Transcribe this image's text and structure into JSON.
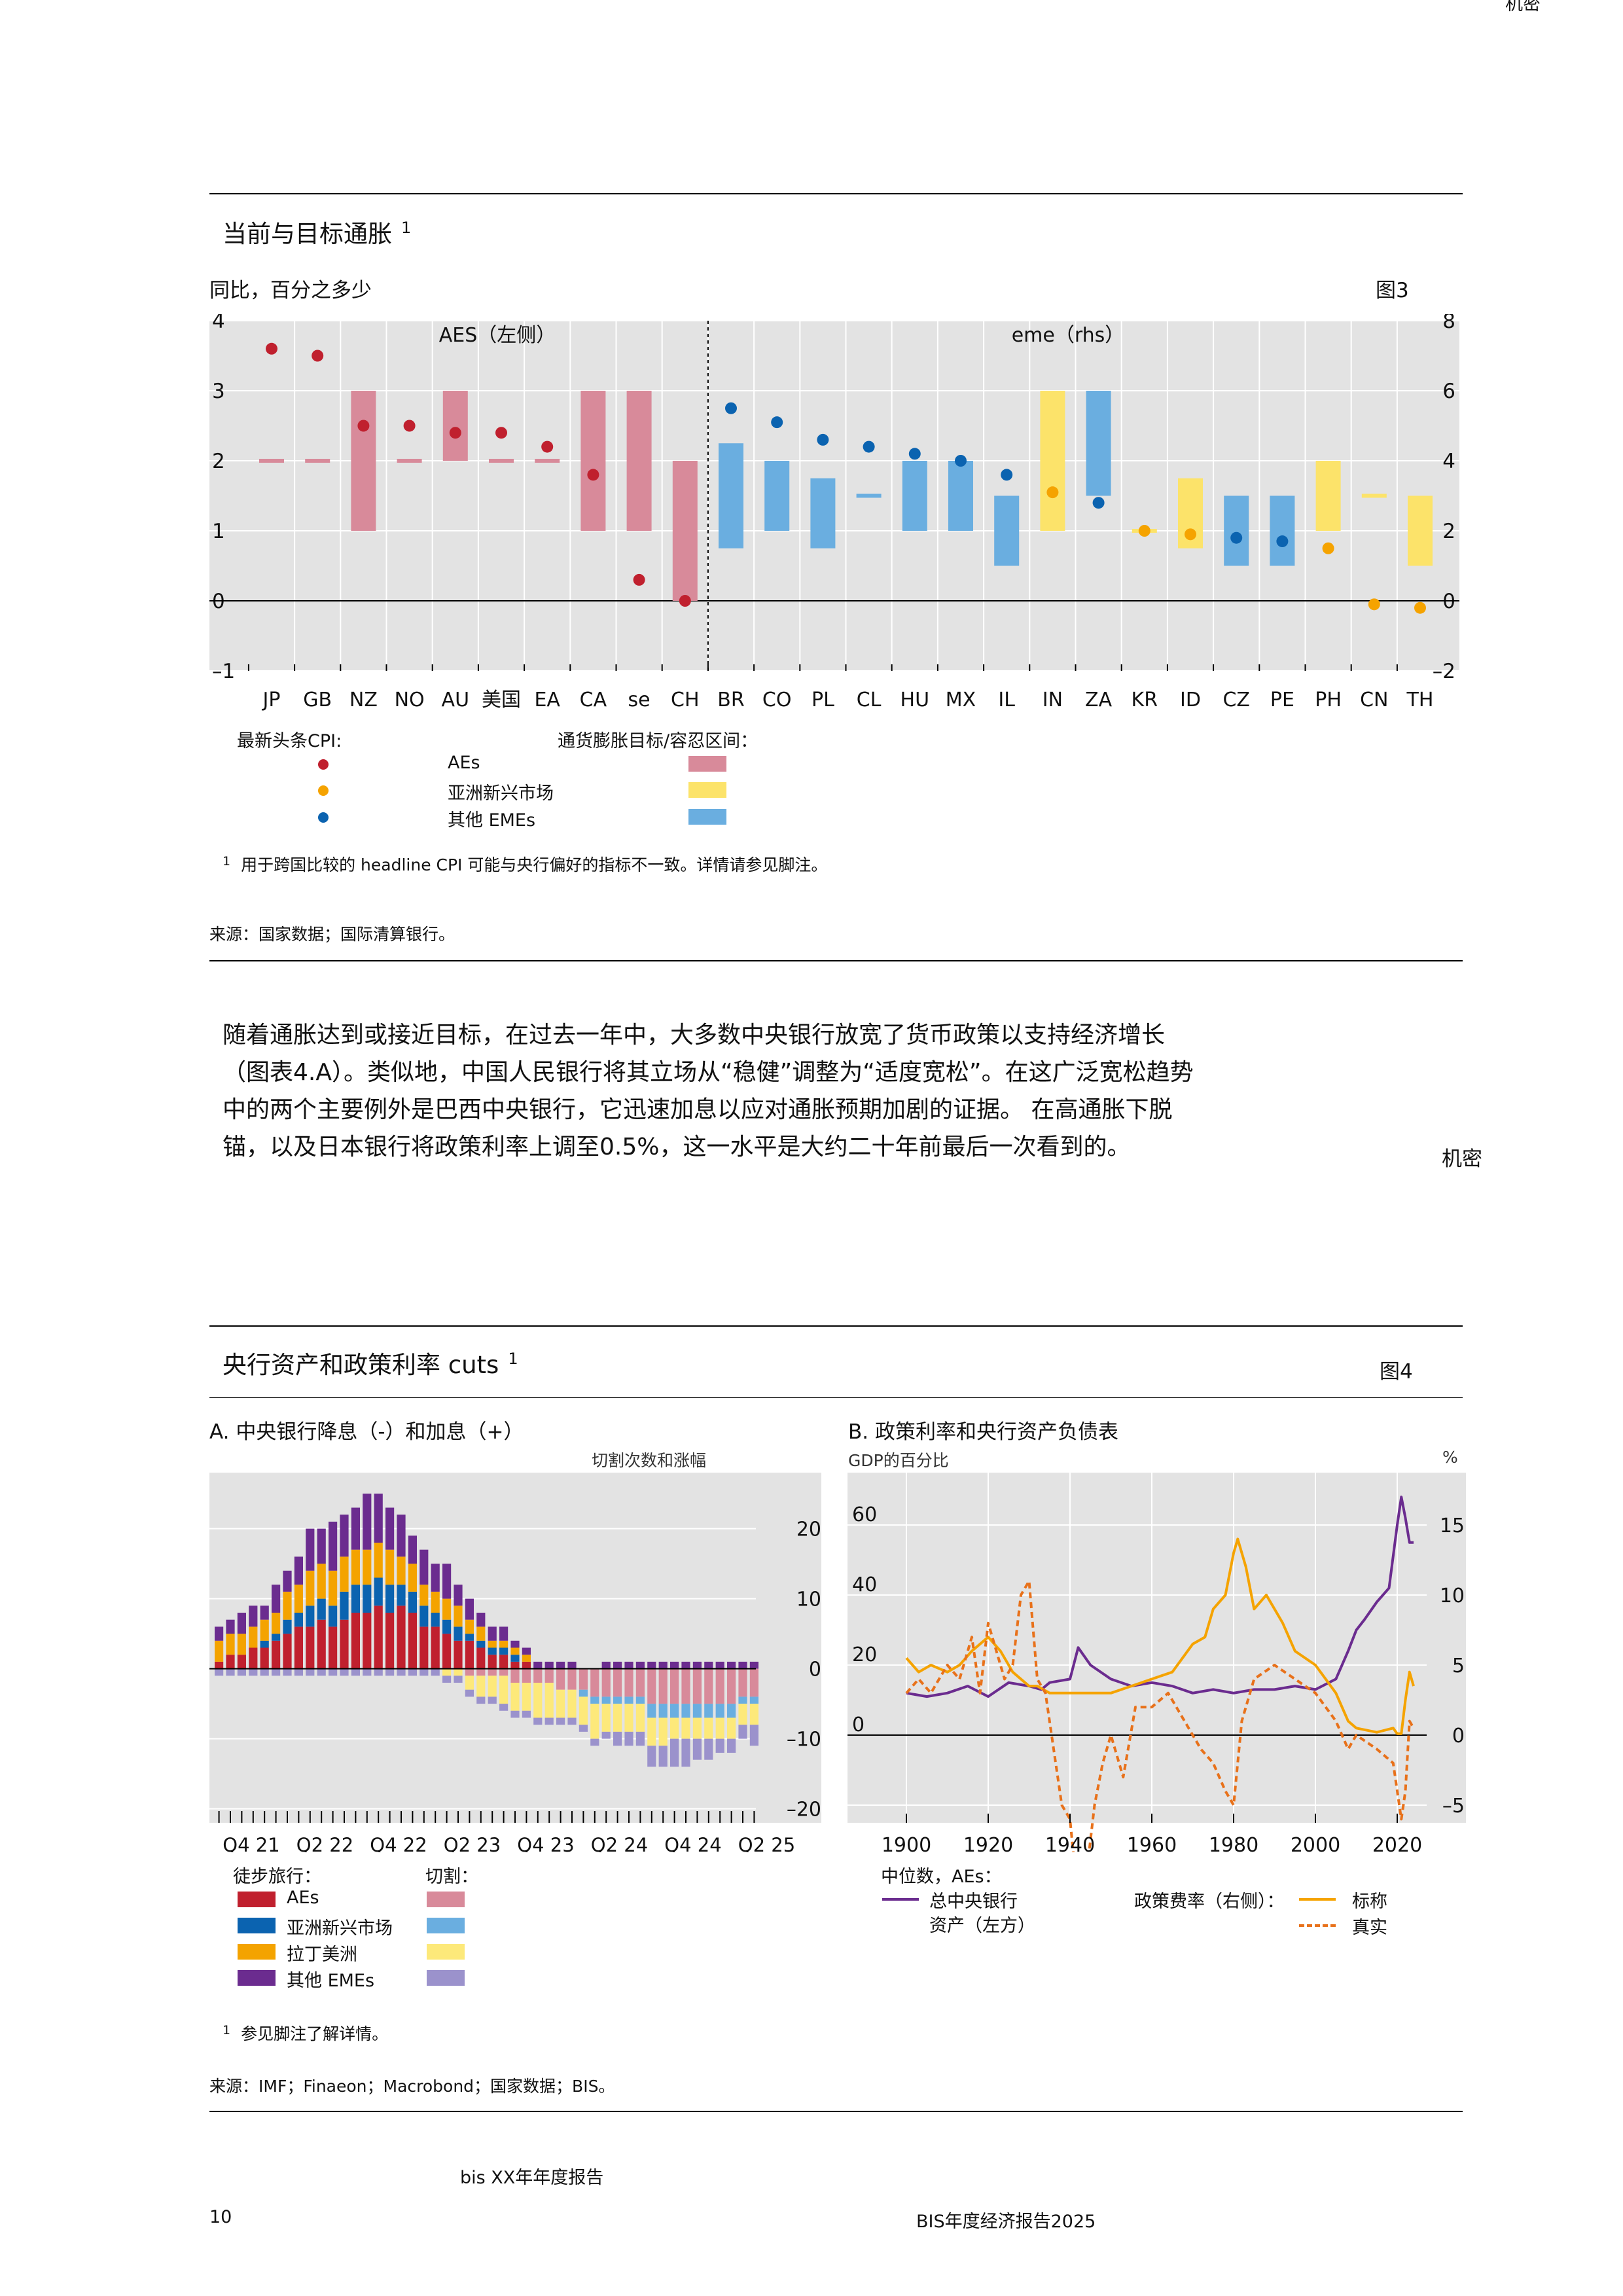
{
  "header": {
    "confidential_top": "机密"
  },
  "figure3": {
    "title": "当前与目标通胀",
    "title_note": "1",
    "subtitle": "同比，百分之多少",
    "label": "图3",
    "left_group": "AES（左侧）",
    "right_group": "eme（rhs）",
    "legend": {
      "cpi_title": "最新头条CPI:",
      "target_title": "通货膨胀目标/容忍区间：",
      "items": [
        "AEs",
        "亚洲新兴市场",
        "其他 EMEs"
      ]
    },
    "footnote_mark": "1",
    "footnote": "用于跨国比较的 headline CPI 可能与央行偏好的指标不一致。详情请参见脚注。",
    "source": "来源：国家数据；国际清算银行。"
  },
  "body": {
    "lines": [
      "随着通胀达到或接近目标，在过去一年中，大多数中央银行放宽了货币政策以支持经济增长",
      "（图表4.A）。类似地，中国人民银行将其立场从“稳健”调整为“适度宽松”。在这广泛宽松趋势",
      "中的两个主要例外是巴西中央银行，它迅速加息以应对通胀预期加剧的证据。 在高通胀下脱",
      "锚，以及日本银行将政策利率上调至0.5%，这一水平是大约二十年前最后一次看到的。"
    ],
    "confidential": "机密"
  },
  "figure4": {
    "title": "央行资产和政策利率 cuts",
    "title_note": "1",
    "label": "图4",
    "panelA": {
      "title": "A. 中央银行降息（-）和加息（+）",
      "unit": "切割次数和涨幅",
      "legend_hikes_title": "徒步旅行：",
      "legend_cuts_title": "切割：",
      "legend_items": [
        "AEs",
        "亚洲新兴市场",
        "拉丁美洲",
        "其他 EMEs"
      ]
    },
    "panelB": {
      "title": "B. 政策利率和央行资产负债表",
      "unit_left": "GDP的百分比",
      "unit_right": "%",
      "legend_median": "中位数，AEs：",
      "legend_assets": "总中央银行资产（左方）",
      "legend_assets_line1": "总中央银行",
      "legend_assets_line2": "资产（左方）",
      "legend_policy": "政策费率（右侧）：",
      "legend_nominal": "标称",
      "legend_real": "真实"
    },
    "footnote_mark": "1",
    "footnote": "参见脚注了解详情。",
    "source": "来源：IMF；Finaeon；Macrobond；国家数据；BIS。"
  },
  "footer": {
    "report": "bis XX年年度报告",
    "page": "10",
    "report_right": "BIS年度经济报告2025"
  },
  "colors": {
    "ae_red": "#c0202e",
    "ae_pink": "#d88a9a",
    "asia_yellow": "#f5a300",
    "asia_light": "#fce36a",
    "eme_blue": "#0b63b0",
    "eme_light": "#6aaee0",
    "latam_orange": "#f4a300",
    "latam_light": "#fde97a",
    "other_purple": "#6b2c8f",
    "other_light": "#9b92cc",
    "panel_bg": "#e3e3e3"
  },
  "chart_data": [
    {
      "type": "bar",
      "name": "figure3",
      "categories": [
        "JP",
        "GB",
        "NZ",
        "NO",
        "AU",
        "美国",
        "EA",
        "CA",
        "se",
        "CH",
        "BR",
        "CO",
        "PL",
        "CL",
        "HU",
        "MX",
        "IL",
        "IN",
        "ZA",
        "KR",
        "ID",
        "CZ",
        "PE",
        "PH",
        "CN",
        "TH"
      ],
      "group": [
        "AE",
        "AE",
        "AE",
        "AE",
        "AE",
        "AE",
        "AE",
        "AE",
        "AE",
        "AE",
        "EME",
        "EME",
        "EME",
        "EME",
        "EME",
        "EME",
        "EME",
        "ASIA",
        "EME",
        "ASIA",
        "ASIA",
        "EME",
        "EME",
        "ASIA",
        "ASIA",
        "ASIA"
      ],
      "axis": [
        "left",
        "left",
        "left",
        "left",
        "left",
        "left",
        "left",
        "left",
        "left",
        "left",
        "right",
        "right",
        "right",
        "right",
        "right",
        "right",
        "right",
        "right",
        "right",
        "right",
        "right",
        "right",
        "right",
        "right",
        "right",
        "right"
      ],
      "target_low": [
        2,
        2,
        1,
        2,
        2,
        2,
        2,
        1,
        1,
        0,
        1.5,
        2,
        1.5,
        3,
        2,
        2,
        1,
        2,
        3,
        2,
        1.5,
        1,
        1,
        2,
        3,
        1
      ],
      "target_high": [
        2,
        2,
        3,
        2,
        3,
        2,
        2,
        3,
        3,
        2,
        4.5,
        4,
        3.5,
        3,
        4,
        4,
        3,
        6,
        6,
        2,
        3.5,
        3,
        3,
        4,
        3,
        3
      ],
      "cpi": [
        3.6,
        3.5,
        2.5,
        2.5,
        2.4,
        2.4,
        2.2,
        1.8,
        0.3,
        0.0,
        5.5,
        5.1,
        4.6,
        4.4,
        4.2,
        4.0,
        3.6,
        3.1,
        2.8,
        2.0,
        1.9,
        1.8,
        1.7,
        1.5,
        -0.1,
        -0.2
      ],
      "ylim_left": [
        -1,
        4
      ],
      "ylim_right": [
        -2,
        8
      ],
      "yticks_left": [
        "–1",
        "0",
        "1",
        "2",
        "3",
        "4"
      ],
      "yticks_right": [
        "–2",
        "0",
        "2",
        "4",
        "6",
        "8"
      ]
    },
    {
      "type": "bar",
      "name": "figure4.panelA",
      "stacked": true,
      "x": [
        "Q4 21",
        "Q2 22",
        "Q4 22",
        "Q2 23",
        "Q4 23",
        "Q2 24",
        "Q4 24",
        "Q2 25"
      ],
      "yticks": [
        "–20",
        "–10",
        "0",
        "10",
        "20"
      ],
      "ylim": [
        -22,
        28
      ],
      "hikes": {
        "AEs": [
          1,
          2,
          2,
          3,
          3,
          4,
          5,
          6,
          6,
          7,
          6,
          7,
          8,
          8,
          9,
          8,
          9,
          8,
          6,
          6,
          5,
          4,
          4,
          3,
          2,
          2,
          1,
          1,
          0,
          0,
          0,
          0,
          0,
          0,
          0,
          0,
          0,
          0,
          0,
          0,
          0,
          0,
          0,
          0,
          0,
          0,
          0,
          0
        ],
        "AsiaEMEs": [
          0,
          0,
          0,
          0,
          1,
          1,
          2,
          2,
          3,
          3,
          3,
          4,
          4,
          4,
          4,
          4,
          3,
          3,
          3,
          2,
          2,
          2,
          1,
          1,
          1,
          1,
          1,
          0,
          0,
          0,
          0,
          0,
          0,
          0,
          0,
          0,
          0,
          0,
          0,
          0,
          0,
          0,
          0,
          0,
          0,
          0,
          0,
          0
        ],
        "LatAm": [
          3,
          3,
          3,
          3,
          3,
          3,
          4,
          4,
          5,
          5,
          5,
          5,
          5,
          5,
          5,
          5,
          4,
          4,
          3,
          3,
          3,
          3,
          2,
          2,
          1,
          1,
          1,
          1,
          0,
          0,
          0,
          0,
          0,
          0,
          0,
          0,
          0,
          0,
          0,
          0,
          0,
          0,
          0,
          0,
          0,
          0,
          0,
          0
        ],
        "OtherEMEs": [
          2,
          2,
          3,
          3,
          2,
          4,
          3,
          4,
          6,
          5,
          7,
          6,
          6,
          8,
          7,
          6,
          6,
          4,
          5,
          4,
          5,
          3,
          3,
          2,
          2,
          2,
          1,
          1,
          1,
          1,
          1,
          1,
          0,
          0,
          1,
          1,
          1,
          1,
          1,
          1,
          1,
          1,
          1,
          1,
          1,
          1,
          1,
          1
        ]
      },
      "cuts": {
        "AEs": [
          0,
          0,
          0,
          0,
          0,
          0,
          0,
          0,
          0,
          0,
          0,
          0,
          0,
          0,
          0,
          0,
          0,
          0,
          0,
          0,
          0,
          0,
          -1,
          -1,
          -1,
          -1,
          -2,
          -2,
          -2,
          -2,
          -3,
          -3,
          -3,
          -4,
          -4,
          -4,
          -4,
          -4,
          -5,
          -5,
          -5,
          -5,
          -5,
          -5,
          -5,
          -5,
          -4,
          -4
        ],
        "AsiaEMEs": [
          0,
          0,
          0,
          0,
          0,
          0,
          0,
          0,
          0,
          0,
          0,
          0,
          0,
          0,
          0,
          0,
          0,
          0,
          0,
          0,
          0,
          0,
          0,
          0,
          0,
          0,
          0,
          0,
          0,
          0,
          0,
          0,
          -1,
          -1,
          -1,
          -1,
          -1,
          -1,
          -2,
          -2,
          -2,
          -2,
          -2,
          -2,
          -2,
          -2,
          -1,
          -1
        ],
        "LatAm": [
          0,
          0,
          0,
          0,
          0,
          0,
          0,
          0,
          0,
          0,
          0,
          0,
          0,
          0,
          0,
          0,
          0,
          0,
          0,
          0,
          -1,
          -1,
          -2,
          -3,
          -3,
          -4,
          -4,
          -4,
          -5,
          -5,
          -4,
          -4,
          -4,
          -5,
          -4,
          -4,
          -4,
          -4,
          -4,
          -4,
          -3,
          -3,
          -3,
          -3,
          -3,
          -3,
          -3,
          -3
        ],
        "OtherEMEs": [
          -1,
          -1,
          -1,
          -1,
          -1,
          -1,
          -1,
          -1,
          -1,
          -1,
          -1,
          -1,
          -1,
          -1,
          -1,
          -1,
          -1,
          -1,
          -1,
          -1,
          -1,
          -1,
          -1,
          -1,
          -1,
          -1,
          -1,
          -1,
          -1,
          -1,
          -1,
          -1,
          -1,
          -1,
          -1,
          -2,
          -2,
          -2,
          -3,
          -3,
          -4,
          -4,
          -3,
          -3,
          -2,
          -2,
          -2,
          -3
        ]
      }
    },
    {
      "type": "line",
      "name": "figure4.panelB",
      "x_ticks": [
        "1900",
        "1920",
        "1940",
        "1960",
        "1980",
        "2000",
        "2020"
      ],
      "yticks_left": [
        "0",
        "20",
        "40",
        "60"
      ],
      "yticks_right": [
        "–10",
        "–5",
        "0",
        "5",
        "10",
        "15"
      ],
      "ylim_left": [
        -20,
        80
      ],
      "ylim_right": [
        -10,
        15
      ],
      "series": [
        {
          "name": "总中央银行资产（左方）",
          "axis": "left",
          "x": [
            1900,
            1905,
            1910,
            1915,
            1920,
            1925,
            1930,
            1933,
            1935,
            1940,
            1942,
            1945,
            1950,
            1955,
            1960,
            1965,
            1970,
            1975,
            1980,
            1985,
            1990,
            1995,
            2000,
            2005,
            2008,
            2010,
            2012,
            2015,
            2018,
            2020,
            2021,
            2022,
            2023,
            2024
          ],
          "y": [
            12,
            11,
            12,
            14,
            11,
            15,
            14,
            13,
            15,
            16,
            25,
            20,
            16,
            14,
            15,
            14,
            12,
            13,
            12,
            13,
            13,
            14,
            13,
            16,
            24,
            30,
            33,
            38,
            42,
            60,
            68,
            62,
            55,
            55
          ]
        },
        {
          "name": "标称",
          "axis": "right",
          "x": [
            1900,
            1903,
            1906,
            1910,
            1913,
            1916,
            1920,
            1923,
            1926,
            1930,
            1932,
            1935,
            1940,
            1945,
            1950,
            1955,
            1960,
            1965,
            1970,
            1973,
            1975,
            1978,
            1980,
            1981,
            1983,
            1985,
            1988,
            1990,
            1992,
            1995,
            2000,
            2005,
            2008,
            2010,
            2015,
            2019,
            2020,
            2021,
            2022,
            2023,
            2024
          ],
          "y": [
            5.5,
            4.5,
            5,
            4.5,
            5,
            6,
            7,
            6,
            4.5,
            3.5,
            3.5,
            3,
            3,
            3,
            3,
            3.5,
            4,
            4.5,
            6.5,
            7,
            9,
            10,
            13,
            14,
            12,
            9,
            10,
            9,
            8,
            6,
            5,
            3,
            1,
            0.5,
            0.2,
            0.5,
            0.1,
            0.1,
            2.5,
            4.5,
            3.5
          ]
        },
        {
          "name": "真实",
          "axis": "right",
          "x": [
            1900,
            1903,
            1906,
            1910,
            1913,
            1916,
            1918,
            1920,
            1922,
            1924,
            1926,
            1928,
            1930,
            1932,
            1934,
            1936,
            1938,
            1940,
            1942,
            1944,
            1946,
            1948,
            1950,
            1953,
            1956,
            1960,
            1964,
            1968,
            1972,
            1975,
            1978,
            1980,
            1982,
            1985,
            1990,
            1995,
            2000,
            2005,
            2008,
            2010,
            2015,
            2019,
            2021,
            2022,
            2023,
            2024
          ],
          "y": [
            3,
            4,
            3,
            5,
            4,
            7,
            3,
            8,
            6,
            4,
            5,
            10,
            11,
            4,
            3,
            -1,
            -5,
            -6,
            -12,
            -10,
            -5,
            -2,
            0,
            -3,
            2,
            2,
            3,
            1,
            -1,
            -2,
            -4,
            -5,
            1,
            4,
            5,
            4,
            3,
            1,
            -1,
            0,
            -1,
            -2,
            -6,
            -4,
            1,
            0.5
          ]
        }
      ]
    }
  ]
}
